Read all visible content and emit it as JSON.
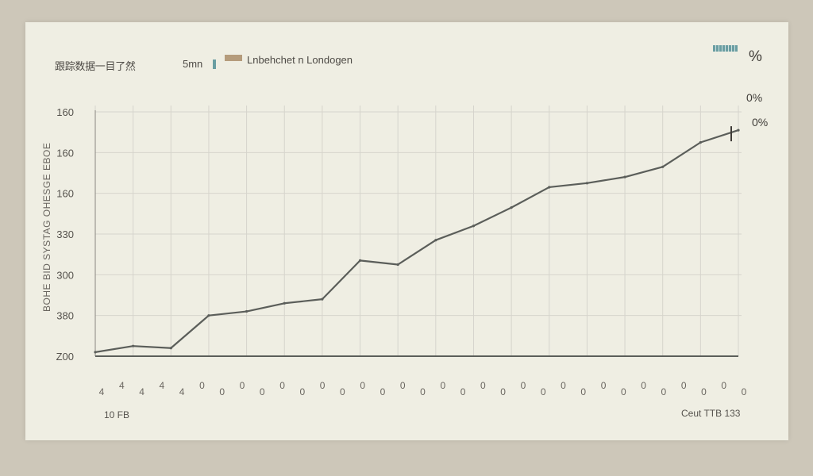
{
  "chart_data": {
    "type": "line",
    "title": "跟踪数据一目了然",
    "title_unit": "5mn",
    "legend": [
      "Lnbehchet n Londogen"
    ],
    "ylabel": "BOHE BID SYSTAG OHESGE EBOE",
    "y_ticks": [
      "160",
      "160",
      "160",
      "330",
      "300",
      "380",
      "Z00"
    ],
    "x_ticks": [
      "4",
      "4",
      "4",
      "4",
      "4",
      "0",
      "0",
      "0",
      "0",
      "0",
      "0",
      "0",
      "0",
      "0",
      "0",
      "0",
      "0",
      "0",
      "0",
      "0",
      "0",
      "0",
      "0",
      "0",
      "0",
      "0",
      "0",
      "0",
      "0",
      "0",
      "0",
      "0",
      "0"
    ],
    "x": [
      0,
      1,
      2,
      3,
      4,
      5,
      6,
      7,
      8,
      9,
      10,
      11,
      12,
      13,
      14,
      15,
      16,
      17
    ],
    "series": [
      {
        "values": [
          0.2,
          0.5,
          0.4,
          2.0,
          2.2,
          2.6,
          2.8,
          4.7,
          4.5,
          5.7,
          6.4,
          7.3,
          8.3,
          8.5,
          8.8,
          9.3,
          10.5,
          11.1
        ]
      }
    ],
    "ylim": [
      0,
      12
    ],
    "grid": true
  },
  "corner": {
    "pct_1": "%",
    "pct_2": "0%",
    "pct_3": "0%"
  },
  "footer": {
    "left": "10 FB",
    "right": "Ceut TTB 133"
  },
  "colors": {
    "background": "#cdc7b9",
    "card": "#efeee3",
    "grid": "#d6d4cc",
    "line": "#5b5e5a",
    "legend_accent": "#6a9ea2",
    "legend_swatch": "#b59c7c"
  }
}
